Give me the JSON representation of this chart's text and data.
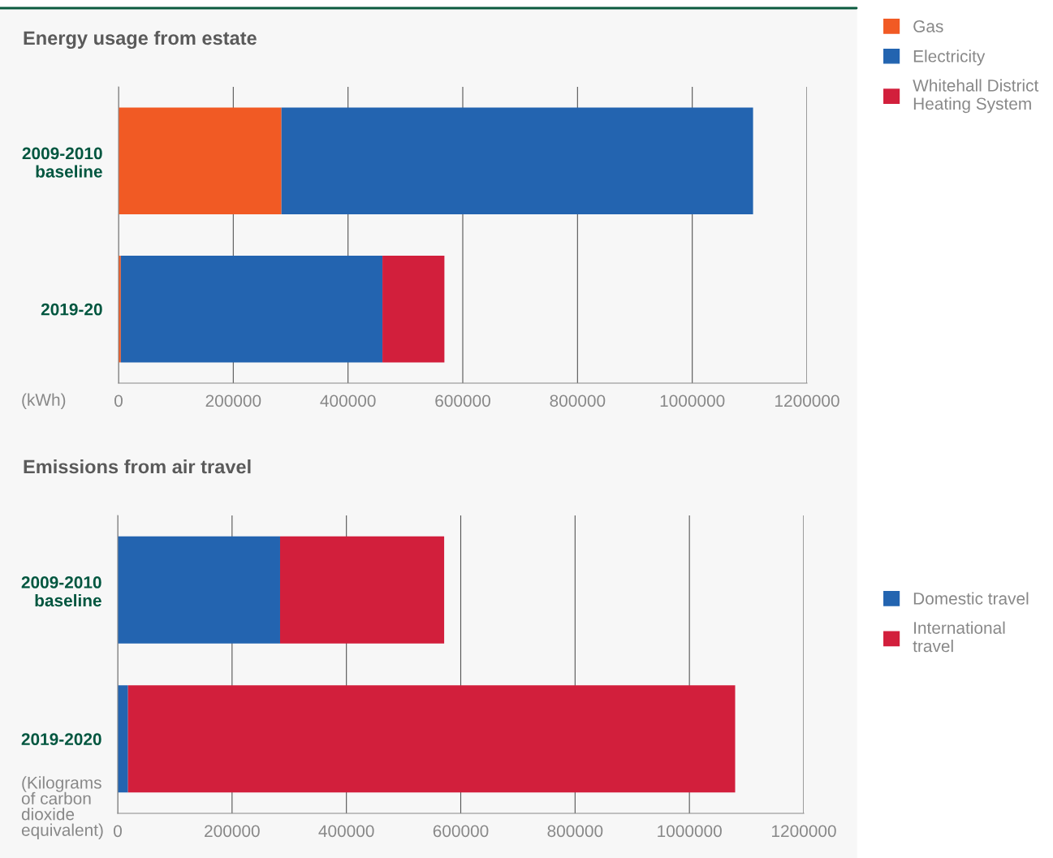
{
  "chart_data": [
    {
      "type": "bar",
      "orientation": "horizontal",
      "stacked": true,
      "title": "Energy usage from estate",
      "xlabel": "(kWh)",
      "categories": [
        "2009-2010\nbaseline",
        "2019-20"
      ],
      "series": [
        {
          "name": "Gas",
          "color": "#f15a24",
          "values": [
            284000,
            4000
          ]
        },
        {
          "name": "Electricity",
          "color": "#2364b0",
          "values": [
            822000,
            456000
          ]
        },
        {
          "name": "Whitehall District\nHeating System",
          "color": "#d21f3c",
          "values": [
            null,
            108000
          ]
        }
      ],
      "xlim": [
        0,
        1200000
      ],
      "xticks": [
        0,
        200000,
        400000,
        600000,
        800000,
        1000000,
        1200000
      ],
      "grid": "x",
      "legend": "right"
    },
    {
      "type": "bar",
      "orientation": "horizontal",
      "stacked": true,
      "title": "Emissions from air travel",
      "xlabel": "(Kilograms\nof carbon\ndioxide\nequivalent)",
      "categories": [
        "2009-2010\nbaseline",
        "2019-2020"
      ],
      "series": [
        {
          "name": "Domestic travel",
          "color": "#2364b0",
          "values": [
            284000,
            18000
          ]
        },
        {
          "name": "International\ntravel",
          "color": "#d21f3c",
          "values": [
            287000,
            1062000
          ]
        }
      ],
      "xlim": [
        0,
        1200000
      ],
      "xticks": [
        0,
        200000,
        400000,
        600000,
        800000,
        1000000,
        1200000
      ],
      "grid": "x",
      "legend": "right"
    }
  ]
}
